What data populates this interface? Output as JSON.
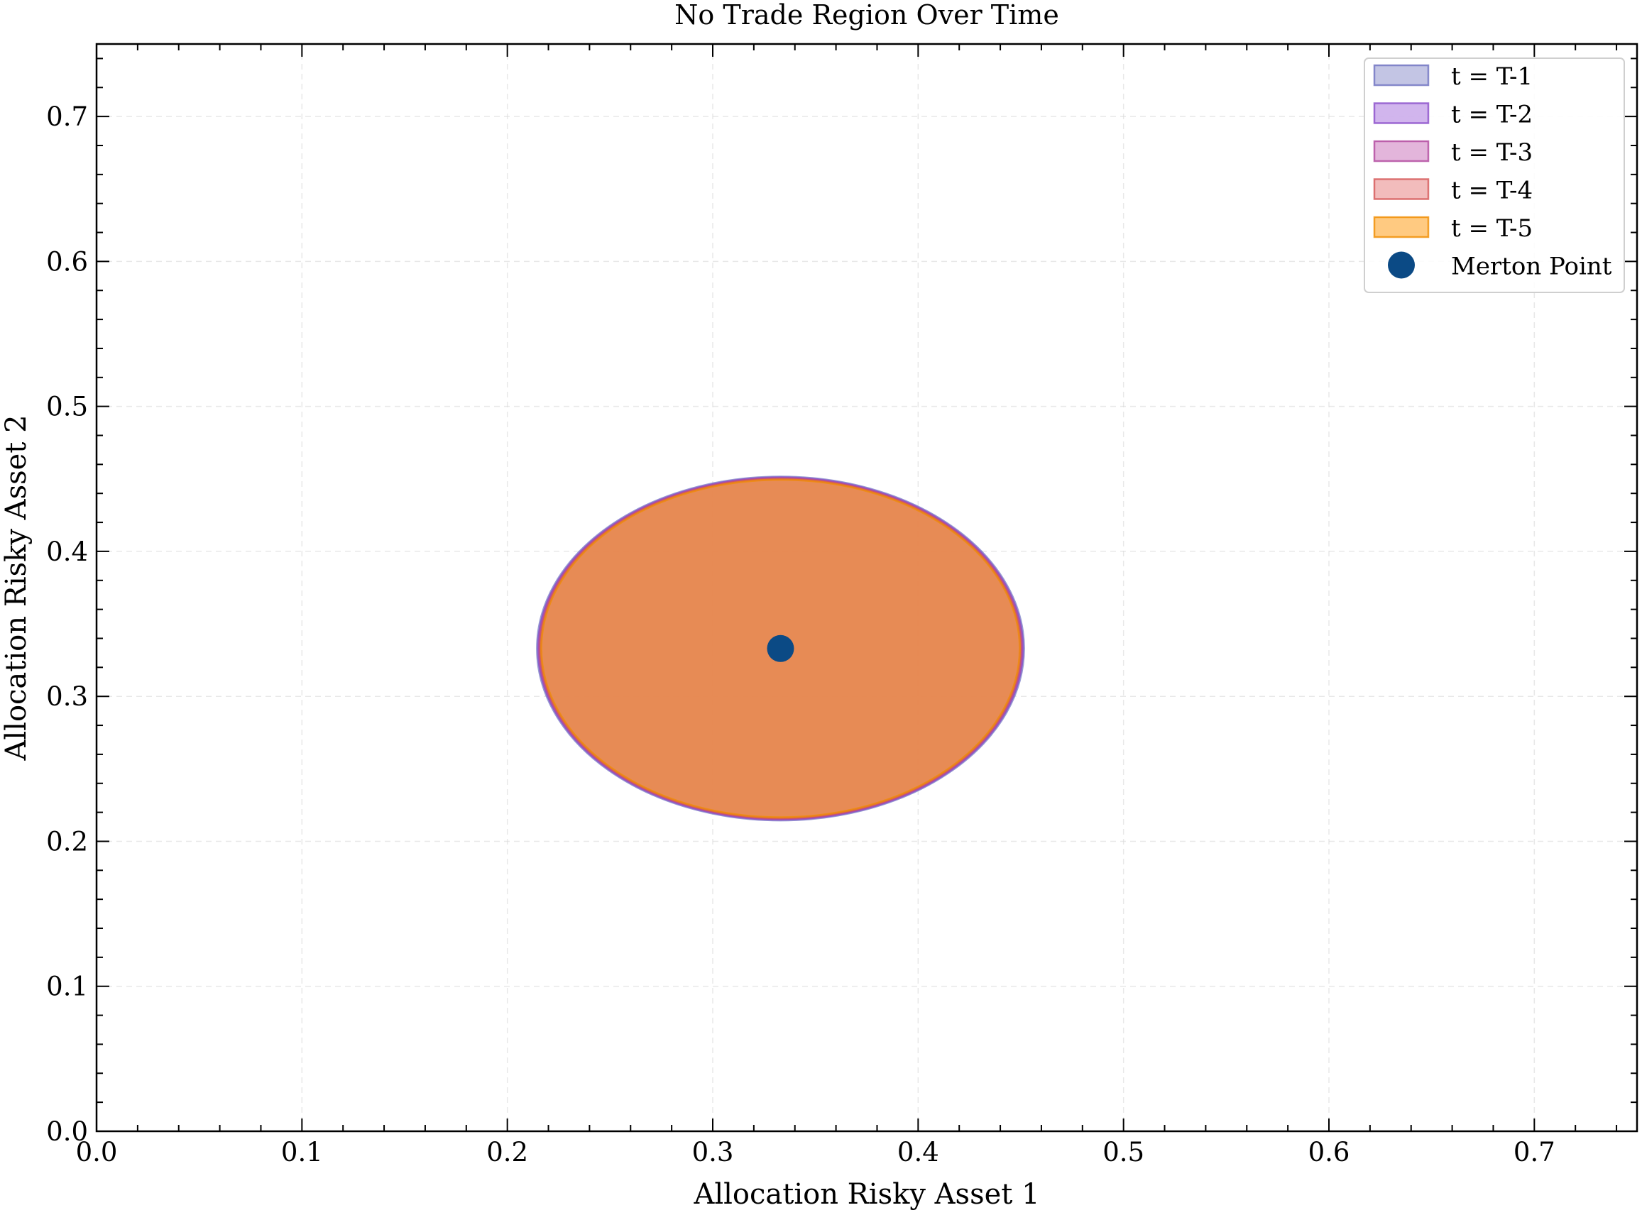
{
  "chart_data": {
    "type": "area",
    "title": "No Trade Region Over Time",
    "xlabel": "Allocation Risky Asset 1",
    "ylabel": "Allocation Risky Asset 2",
    "xlim": [
      0.0,
      0.75
    ],
    "ylim": [
      0.0,
      0.75
    ],
    "xticks": [
      "0.0",
      "0.1",
      "0.2",
      "0.3",
      "0.4",
      "0.5",
      "0.6",
      "0.7"
    ],
    "yticks": [
      "0.0",
      "0.1",
      "0.2",
      "0.3",
      "0.4",
      "0.5",
      "0.6",
      "0.7"
    ],
    "grid": true,
    "legend_position": "top-right",
    "series": [
      {
        "name": "t = T-1",
        "center": [
          0.333,
          0.333
        ],
        "half_width_x": 0.1185,
        "half_height_y": 0.1185,
        "fill": "#7b7fc4",
        "edge": "#6e72c0",
        "alpha": 0.45
      },
      {
        "name": "t = T-2",
        "center": [
          0.333,
          0.333
        ],
        "half_width_x": 0.118,
        "half_height_y": 0.118,
        "fill": "#9a5cd6",
        "edge": "#8a4cc9",
        "alpha": 0.45
      },
      {
        "name": "t = T-3",
        "center": [
          0.333,
          0.333
        ],
        "half_width_x": 0.1175,
        "half_height_y": 0.1175,
        "fill": "#c25bb0",
        "edge": "#b0479e",
        "alpha": 0.45
      },
      {
        "name": "t = T-4",
        "center": [
          0.333,
          0.333
        ],
        "half_width_x": 0.117,
        "half_height_y": 0.117,
        "fill": "#e36a6a",
        "edge": "#d45656",
        "alpha": 0.45
      },
      {
        "name": "t = T-5",
        "center": [
          0.333,
          0.333
        ],
        "half_width_x": 0.1165,
        "half_height_y": 0.1165,
        "fill": "#ff9f1a",
        "edge": "#f08c00",
        "alpha": 0.55
      }
    ],
    "points": [
      {
        "name": "Merton Point",
        "x": 0.333,
        "y": 0.333,
        "color": "#0b4a85"
      }
    ]
  }
}
